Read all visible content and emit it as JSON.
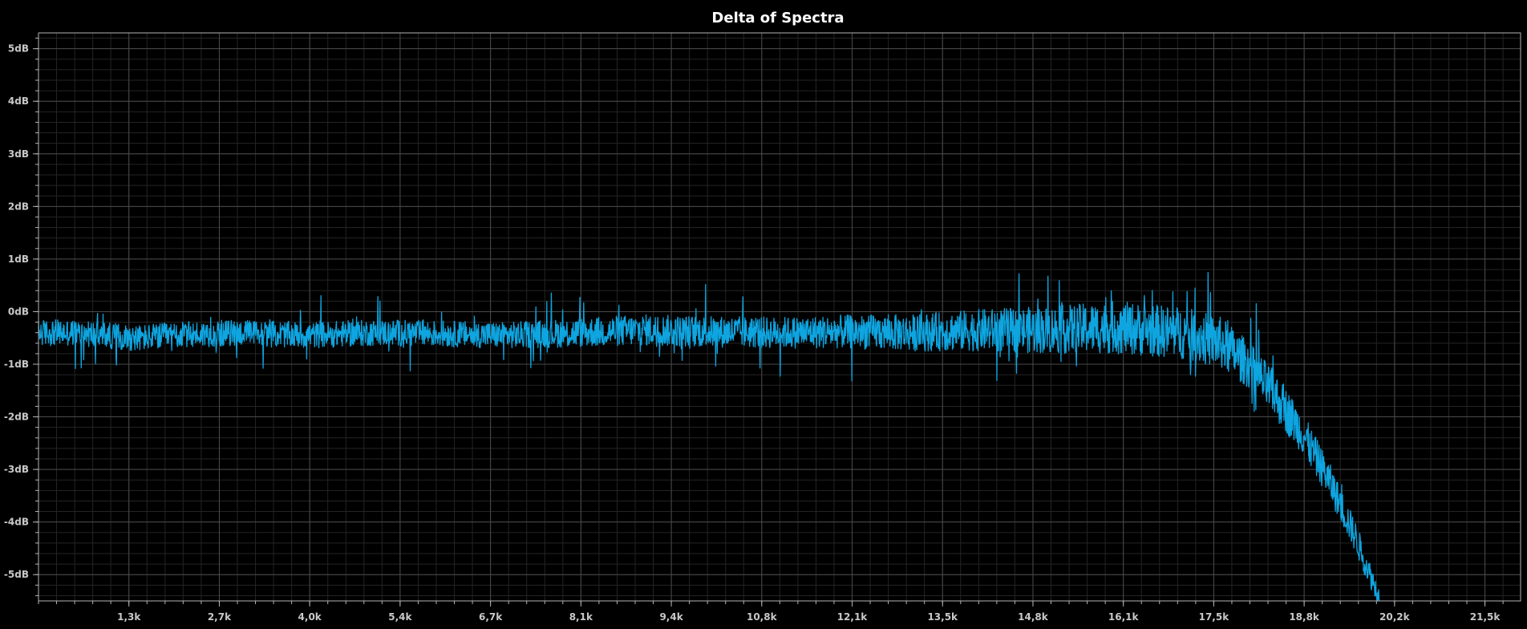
{
  "chart_data": {
    "type": "line",
    "title": "Delta of Spectra",
    "xlabel": "",
    "ylabel": "",
    "x_unit": "Hz",
    "y_unit": "dB",
    "xlim": [
      0,
      22050
    ],
    "ylim": [
      -5.5,
      5.3
    ],
    "grid": true,
    "minor_grid": true,
    "legend": "none",
    "y_ticks": [
      {
        "value": 5,
        "label": "5dB"
      },
      {
        "value": 4,
        "label": "4dB"
      },
      {
        "value": 3,
        "label": "3dB"
      },
      {
        "value": 2,
        "label": "2dB"
      },
      {
        "value": 1,
        "label": "1dB"
      },
      {
        "value": 0,
        "label": "0dB"
      },
      {
        "value": -1,
        "label": "-1dB"
      },
      {
        "value": -2,
        "label": "-2dB"
      },
      {
        "value": -3,
        "label": "-3dB"
      },
      {
        "value": -4,
        "label": "-4dB"
      },
      {
        "value": -5,
        "label": "-5dB"
      }
    ],
    "x_ticks": [
      {
        "value": 1345,
        "label": "1,3k"
      },
      {
        "value": 2690,
        "label": "2,7k"
      },
      {
        "value": 4035,
        "label": "4,0k"
      },
      {
        "value": 5380,
        "label": "5,4k"
      },
      {
        "value": 6725,
        "label": "6,7k"
      },
      {
        "value": 8070,
        "label": "8,1k"
      },
      {
        "value": 9415,
        "label": "9,4k"
      },
      {
        "value": 10760,
        "label": "10,8k"
      },
      {
        "value": 12105,
        "label": "12,1k"
      },
      {
        "value": 13450,
        "label": "13,5k"
      },
      {
        "value": 14795,
        "label": "14,8k"
      },
      {
        "value": 16140,
        "label": "16,1k"
      },
      {
        "value": 17485,
        "label": "17,5k"
      },
      {
        "value": 18830,
        "label": "18,8k"
      },
      {
        "value": 20175,
        "label": "20,2k"
      },
      {
        "value": 21520,
        "label": "21,5k"
      }
    ],
    "series": [
      {
        "color": "#0ea5e0",
        "x": [
          0,
          500,
          1000,
          1500,
          2000,
          3000,
          4000,
          5000,
          6000,
          7000,
          8000,
          9000,
          10000,
          11000,
          12000,
          13000,
          14000,
          15000,
          16000,
          17000,
          17600,
          18000,
          18400,
          18800,
          19200,
          19600,
          19950
        ],
        "y": [
          -0.4,
          -0.4,
          -0.45,
          -0.5,
          -0.45,
          -0.4,
          -0.45,
          -0.4,
          -0.42,
          -0.45,
          -0.4,
          -0.35,
          -0.38,
          -0.4,
          -0.38,
          -0.4,
          -0.35,
          -0.35,
          -0.3,
          -0.4,
          -0.6,
          -1.0,
          -1.6,
          -2.3,
          -3.2,
          -4.3,
          -5.45
        ],
        "noise_amplitude": [
          0.25,
          0.25,
          0.25,
          0.25,
          0.25,
          0.25,
          0.25,
          0.25,
          0.25,
          0.25,
          0.28,
          0.3,
          0.3,
          0.3,
          0.32,
          0.35,
          0.4,
          0.45,
          0.5,
          0.5,
          0.5,
          0.45,
          0.45,
          0.4,
          0.35,
          0.3,
          0.2
        ]
      }
    ]
  },
  "colors": {
    "background": "#000000",
    "plot_border": "#b4b4b4",
    "major_grid": "#4a4a4a",
    "minor_grid": "#242424",
    "title": "#ffffff",
    "tick_label": "#c8c8c8"
  }
}
